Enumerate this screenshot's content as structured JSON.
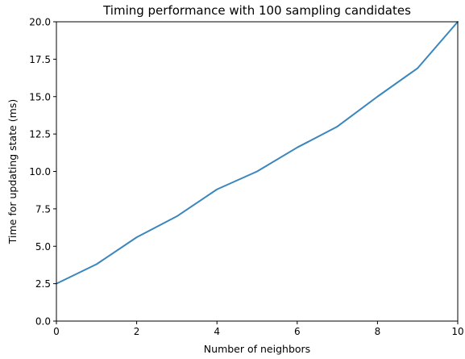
{
  "chart_data": {
    "type": "line",
    "title": "Timing performance with 100 sampling candidates",
    "xlabel": "Number of neighbors",
    "ylabel": "Time for updating state (ms)",
    "xlim": [
      0,
      10
    ],
    "ylim": [
      0,
      20
    ],
    "xticks": [
      0,
      2,
      4,
      6,
      8,
      10
    ],
    "xtick_labels": [
      "0",
      "2",
      "4",
      "6",
      "8",
      "10"
    ],
    "yticks": [
      0,
      2.5,
      5,
      7.5,
      10,
      12.5,
      15,
      17.5,
      20
    ],
    "ytick_labels": [
      "0.0",
      "2.5",
      "5.0",
      "7.5",
      "10.0",
      "12.5",
      "15.0",
      "17.5",
      "20.0"
    ],
    "grid": false,
    "series": [
      {
        "color": "#3a86bd",
        "x": [
          0,
          1,
          2,
          3,
          4,
          5,
          6,
          7,
          8,
          9,
          10
        ],
        "y": [
          2.5,
          3.8,
          5.6,
          7.0,
          8.8,
          10.0,
          11.6,
          13.0,
          15.0,
          16.9,
          20.0
        ]
      }
    ]
  }
}
